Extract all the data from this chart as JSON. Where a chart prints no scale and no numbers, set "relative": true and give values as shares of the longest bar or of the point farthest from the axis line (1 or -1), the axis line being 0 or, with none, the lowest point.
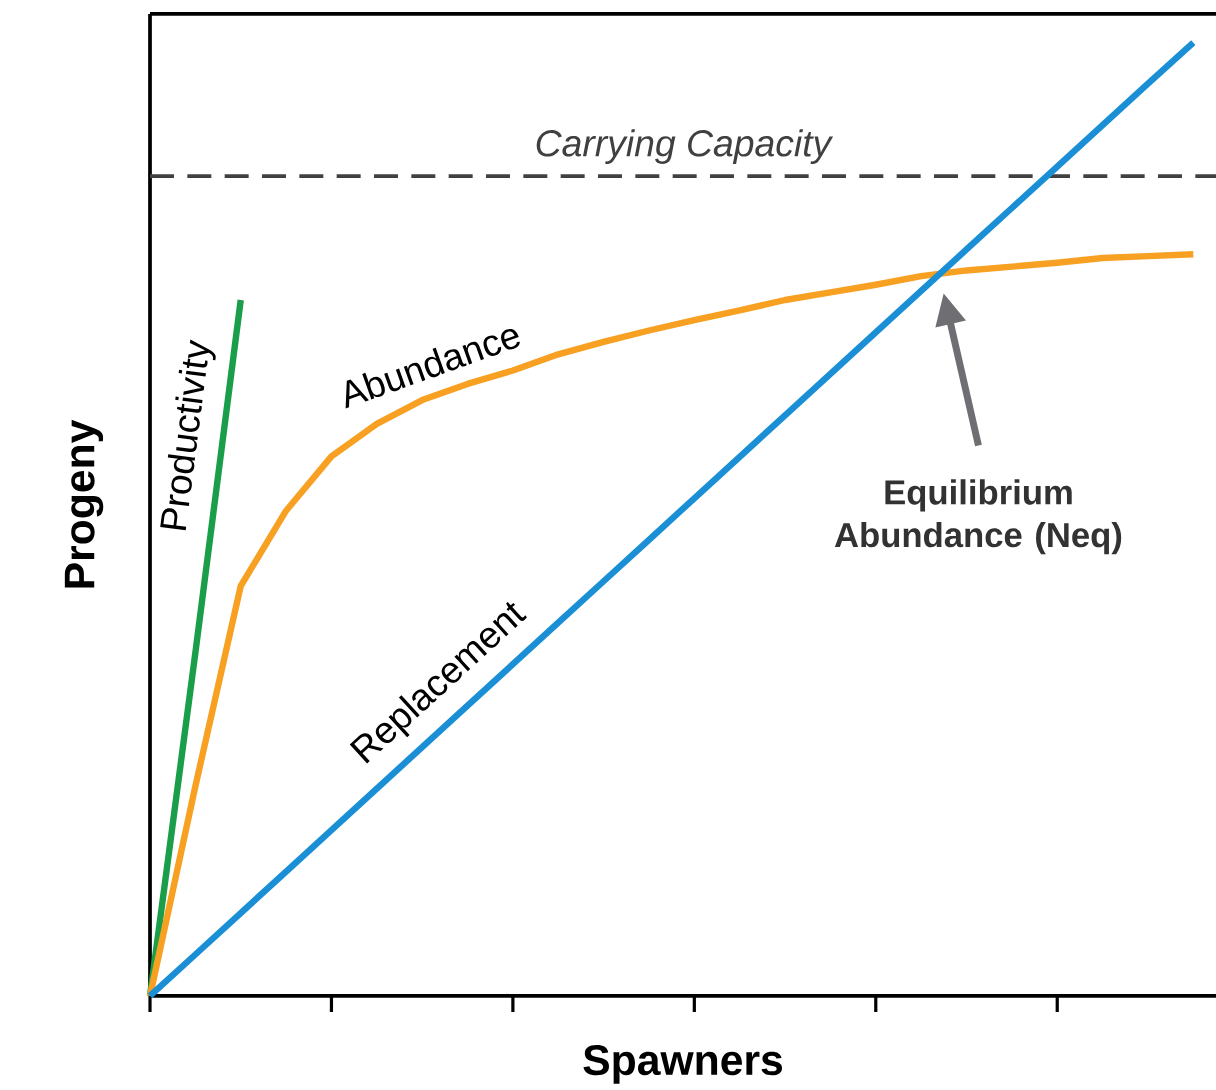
{
  "chart_data": {
    "type": "line",
    "relative": true,
    "xlabel": "Spawners",
    "ylabel": "Progeny",
    "marker": "none",
    "categories": [
      null,
      null,
      null,
      null,
      null,
      null,
      null,
      null,
      null,
      null,
      null,
      null,
      null,
      null,
      null,
      null,
      null,
      null,
      null,
      null,
      null,
      null,
      null,
      null
    ],
    "series": [
      {
        "name": "Productivity",
        "color": "#1a9e4a",
        "values": [
          0,
          0.36,
          0.73,
          null,
          null,
          null,
          null,
          null,
          null,
          null,
          null,
          null,
          null,
          null,
          null,
          null,
          null,
          null,
          null,
          null,
          null,
          null,
          null,
          null
        ]
      },
      {
        "name": "Abundance",
        "color": "#f7a021",
        "values": [
          0,
          0.22,
          0.43,
          0.509,
          0.566,
          0.6,
          0.625,
          0.642,
          0.656,
          0.673,
          0.686,
          0.698,
          0.709,
          0.719,
          0.73,
          0.738,
          0.746,
          0.755,
          0.761,
          0.765,
          0.769,
          0.774,
          0.776,
          0.778
        ]
      },
      {
        "name": "Replacement",
        "color": "#1a8fd6",
        "values": [
          0,
          0.0435,
          0.087,
          0.1305,
          0.174,
          0.2175,
          0.261,
          0.3045,
          0.348,
          0.3915,
          0.435,
          0.4785,
          0.522,
          0.5655,
          0.609,
          0.6525,
          0.696,
          0.7395,
          0.783,
          0.8265,
          0.87,
          0.9135,
          0.957,
          1.0
        ]
      }
    ],
    "ref_lines": [
      {
        "axis": "y",
        "value": 0.86,
        "label": "Carrying Capacity",
        "color": "#404040",
        "line_style": "dashed"
      }
    ],
    "annotations": [
      "Equilibrium Abundance (Neq)"
    ]
  }
}
